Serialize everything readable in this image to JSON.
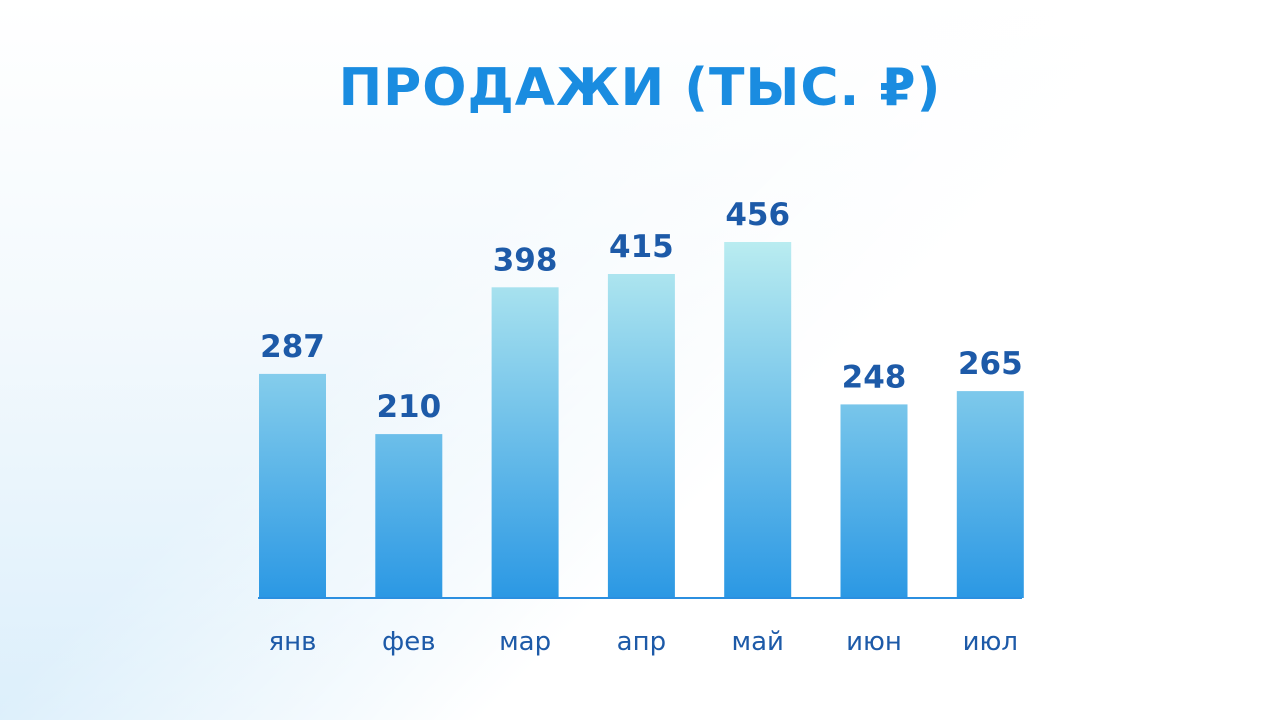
{
  "chart_data": {
    "type": "bar",
    "title": "ПРОДАЖИ (ТЫС. ₽)",
    "categories": [
      "янв",
      "фев",
      "мар",
      "апр",
      "май",
      "июн",
      "июл"
    ],
    "values": [
      287,
      210,
      398,
      415,
      456,
      248,
      265
    ],
    "ylim": [
      0,
      456
    ],
    "grid": false,
    "colors": {
      "title": "#1a8ce0",
      "labels": "#1d5aa8",
      "bar_top": "#b9ecf0",
      "bar_bottom": "#2b98e4",
      "axis": "#2b8fe0"
    }
  }
}
